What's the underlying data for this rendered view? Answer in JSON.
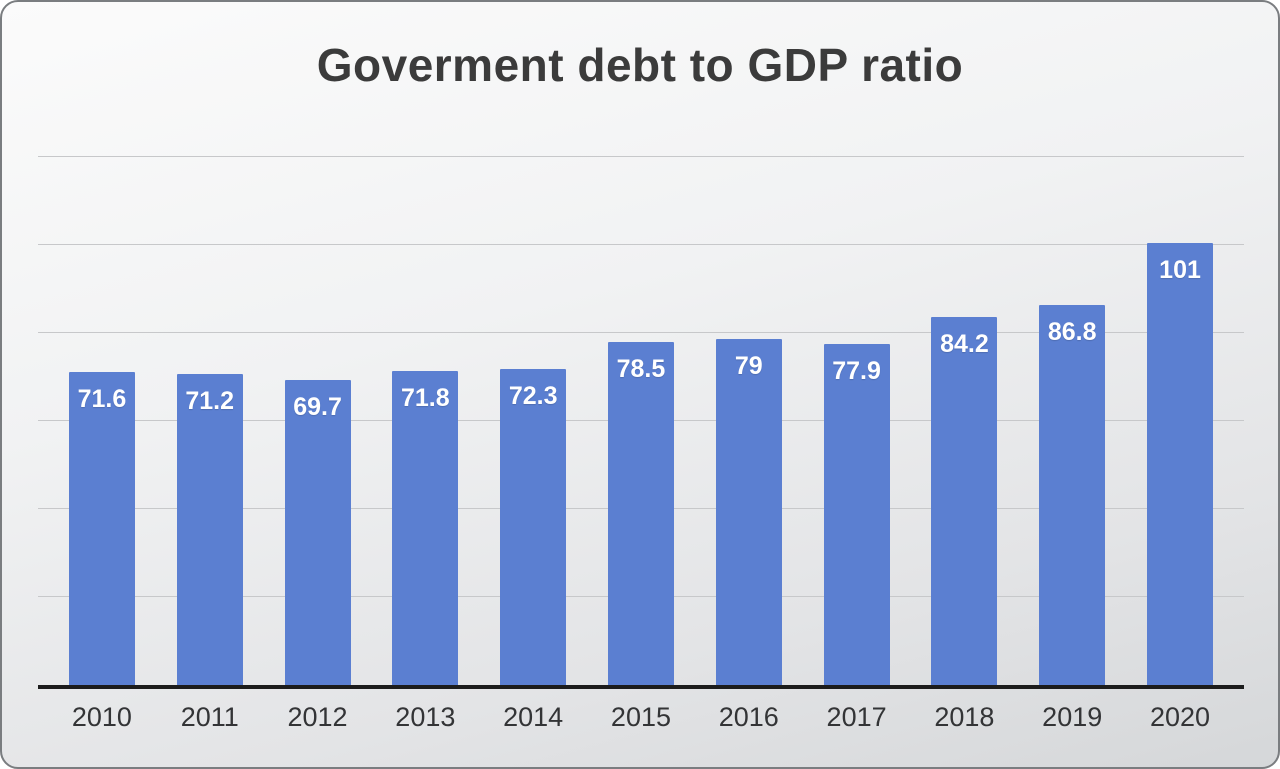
{
  "chart_data": {
    "type": "bar",
    "title": "Goverment debt to GDP ratio",
    "categories": [
      "2010",
      "2011",
      "2012",
      "2013",
      "2014",
      "2015",
      "2016",
      "2017",
      "2018",
      "2019",
      "2020"
    ],
    "values": [
      71.6,
      71.2,
      69.7,
      71.8,
      72.3,
      78.5,
      79,
      77.9,
      84.2,
      86.8,
      101
    ],
    "xlabel": "",
    "ylabel": "",
    "ylim": [
      0,
      120
    ],
    "gridline_step": 20,
    "grid": "horizontal",
    "legend": "none",
    "data_labels": "inside-end",
    "colors": {
      "bar": "#5b7fd1",
      "bar_label": "#ffffff",
      "gridline": "#c7c8ca",
      "axis": "#1c1c1c",
      "title": "#3b3b3b",
      "tick_label": "#333436"
    }
  }
}
